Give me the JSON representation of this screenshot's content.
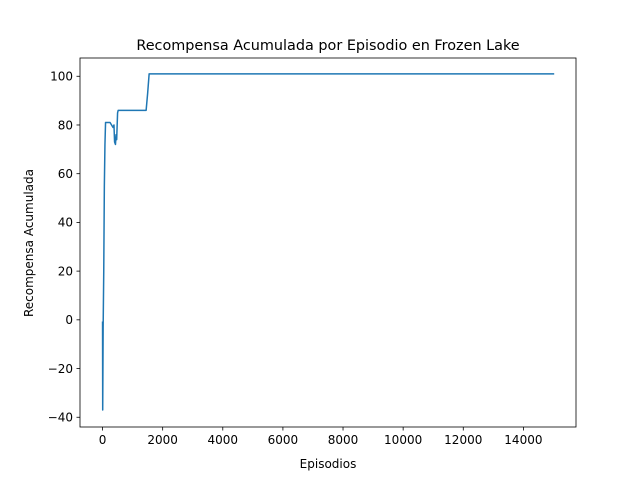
{
  "chart_data": {
    "type": "line",
    "title": "Recompensa Acumulada por Episodio en Frozen Lake",
    "xlabel": "Episodios",
    "ylabel": "Recompensa Acumulada",
    "xlim": [
      -750,
      15750
    ],
    "ylim": [
      -44,
      107.5
    ],
    "x_ticks": [
      0,
      2000,
      4000,
      6000,
      8000,
      10000,
      12000,
      14000
    ],
    "x_tick_labels": [
      "0",
      "2000",
      "4000",
      "6000",
      "8000",
      "10000",
      "12000",
      "14000"
    ],
    "y_ticks": [
      -40,
      -20,
      0,
      20,
      40,
      60,
      80,
      100
    ],
    "y_tick_labels": [
      "−40",
      "−20",
      "0",
      "20",
      "40",
      "60",
      "80",
      "100"
    ],
    "grid": false,
    "color": "#1f77b4",
    "series": [
      {
        "x": [
          0,
          5,
          20,
          40,
          60,
          80,
          100,
          150,
          250,
          300,
          350,
          380,
          400,
          430,
          450,
          470,
          500,
          520,
          550,
          600,
          800,
          1000,
          1200,
          1400,
          1450,
          1500,
          1550,
          1600,
          2000,
          5000,
          10000,
          15000
        ],
        "y": [
          -1,
          -37,
          -3,
          20,
          55,
          72,
          81,
          81,
          81,
          80,
          79,
          80,
          73,
          72,
          76,
          74,
          85,
          86,
          86,
          86,
          86,
          86,
          86,
          86,
          86,
          93,
          101,
          101,
          101,
          101,
          101,
          101
        ]
      }
    ]
  }
}
